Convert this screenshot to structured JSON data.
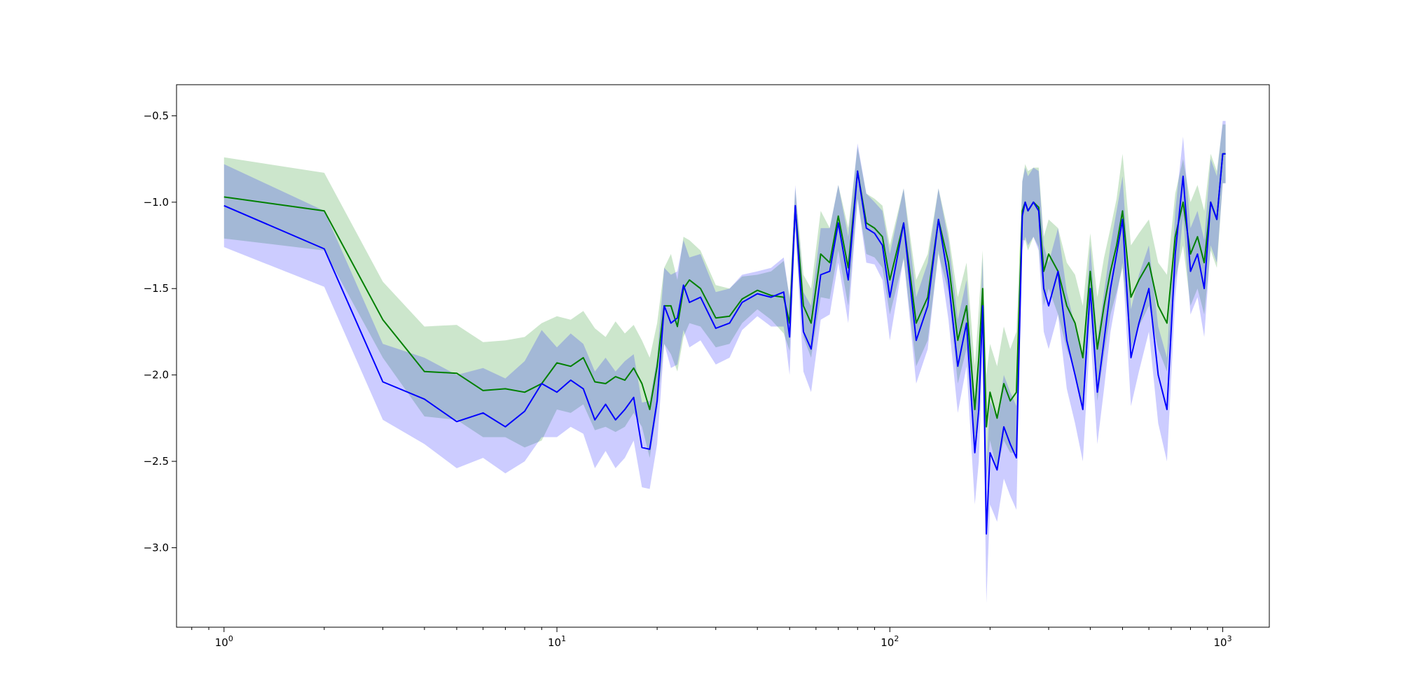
{
  "chart_data": {
    "type": "line",
    "title": "",
    "xlabel": "",
    "ylabel": "",
    "xscale": "log",
    "xlim": [
      0.72,
      1380
    ],
    "ylim": [
      -3.46,
      -0.32
    ],
    "grid": false,
    "legend": "none",
    "x_tick_values": [
      1,
      10,
      100,
      1000
    ],
    "x_tick_bases": [
      "10",
      "10",
      "10",
      "10"
    ],
    "x_tick_exponents": [
      "0",
      "1",
      "2",
      "3"
    ],
    "y_tick_values": [
      -0.5,
      -1.0,
      -1.5,
      -2.0,
      -2.5,
      -3.0
    ],
    "y_tick_labels": [
      "−0.5",
      "−1.0",
      "−1.5",
      "−2.0",
      "−2.5",
      "−3.0"
    ],
    "series": [
      {
        "color": "#008000",
        "band_color": "#008000",
        "band_opacity": 0.2,
        "x": [
          1,
          2,
          3,
          4,
          5,
          6,
          7,
          8,
          9,
          10,
          11,
          12,
          13,
          14,
          15,
          16,
          17,
          18,
          19,
          20,
          21,
          22,
          23,
          24,
          25,
          27,
          30,
          33,
          36,
          40,
          44,
          48,
          50,
          52,
          55,
          58,
          62,
          66,
          70,
          75,
          80,
          85,
          90,
          95,
          100,
          110,
          120,
          130,
          140,
          150,
          160,
          170,
          180,
          185,
          190,
          195,
          200,
          210,
          220,
          230,
          240,
          250,
          255,
          260,
          270,
          280,
          290,
          300,
          320,
          340,
          360,
          380,
          400,
          420,
          440,
          460,
          480,
          500,
          530,
          560,
          600,
          640,
          680,
          720,
          760,
          800,
          840,
          880,
          920,
          960,
          1000,
          1020
        ],
        "y": [
          -0.97,
          -1.05,
          -1.68,
          -1.98,
          -1.99,
          -2.09,
          -2.08,
          -2.1,
          -2.05,
          -1.93,
          -1.95,
          -1.9,
          -2.04,
          -2.05,
          -2.01,
          -2.03,
          -1.96,
          -2.05,
          -2.2,
          -1.95,
          -1.6,
          -1.6,
          -1.72,
          -1.5,
          -1.45,
          -1.5,
          -1.67,
          -1.66,
          -1.56,
          -1.51,
          -1.54,
          -1.55,
          -1.7,
          -1.03,
          -1.6,
          -1.7,
          -1.3,
          -1.35,
          -1.08,
          -1.38,
          -0.82,
          -1.12,
          -1.15,
          -1.2,
          -1.45,
          -1.12,
          -1.7,
          -1.55,
          -1.1,
          -1.35,
          -1.8,
          -1.6,
          -2.2,
          -1.9,
          -1.5,
          -2.3,
          -2.1,
          -2.25,
          -2.05,
          -2.15,
          -2.1,
          -1.05,
          -1.0,
          -1.05,
          -1.0,
          -1.03,
          -1.4,
          -1.3,
          -1.4,
          -1.6,
          -1.7,
          -1.9,
          -1.4,
          -1.85,
          -1.6,
          -1.4,
          -1.25,
          -1.05,
          -1.55,
          -1.45,
          -1.35,
          -1.6,
          -1.7,
          -1.2,
          -1.0,
          -1.3,
          -1.2,
          -1.35,
          -1.0,
          -1.1,
          -0.72,
          -0.72
        ],
        "upper": [
          -0.74,
          -0.83,
          -1.46,
          -1.72,
          -1.71,
          -1.81,
          -1.8,
          -1.78,
          -1.7,
          -1.66,
          -1.68,
          -1.63,
          -1.73,
          -1.78,
          -1.69,
          -1.76,
          -1.71,
          -1.8,
          -1.9,
          -1.7,
          -1.38,
          -1.3,
          -1.45,
          -1.2,
          -1.22,
          -1.28,
          -1.48,
          -1.5,
          -1.43,
          -1.42,
          -1.4,
          -1.34,
          -1.55,
          -0.92,
          -1.42,
          -1.5,
          -1.05,
          -1.15,
          -0.9,
          -1.15,
          -0.68,
          -0.95,
          -0.98,
          -1.02,
          -1.25,
          -0.92,
          -1.45,
          -1.3,
          -0.92,
          -1.18,
          -1.55,
          -1.35,
          -1.95,
          -1.62,
          -1.28,
          -2.0,
          -1.82,
          -1.95,
          -1.72,
          -1.85,
          -1.75,
          -0.88,
          -0.78,
          -0.82,
          -0.8,
          -0.8,
          -1.2,
          -1.1,
          -1.15,
          -1.35,
          -1.42,
          -1.6,
          -1.18,
          -1.55,
          -1.32,
          -1.15,
          -0.98,
          -0.72,
          -1.25,
          -1.18,
          -1.1,
          -1.35,
          -1.42,
          -0.95,
          -0.75,
          -1.0,
          -0.9,
          -1.05,
          -0.72,
          -0.82,
          -0.55,
          -0.55
        ],
        "lower": [
          -1.21,
          -1.28,
          -1.9,
          -2.24,
          -2.26,
          -2.36,
          -2.36,
          -2.42,
          -2.38,
          -2.2,
          -2.22,
          -2.17,
          -2.32,
          -2.3,
          -2.33,
          -2.3,
          -2.22,
          -2.3,
          -2.48,
          -2.2,
          -1.82,
          -1.88,
          -1.98,
          -1.78,
          -1.7,
          -1.72,
          -1.84,
          -1.82,
          -1.7,
          -1.62,
          -1.68,
          -1.76,
          -1.86,
          -1.15,
          -1.78,
          -1.9,
          -1.55,
          -1.56,
          -1.28,
          -1.6,
          -0.98,
          -1.3,
          -1.32,
          -1.38,
          -1.65,
          -1.33,
          -1.95,
          -1.8,
          -1.3,
          -1.52,
          -2.05,
          -1.85,
          -2.45,
          -2.2,
          -1.72,
          -2.6,
          -2.38,
          -2.55,
          -2.38,
          -2.45,
          -2.45,
          -1.22,
          -1.22,
          -1.28,
          -1.2,
          -1.26,
          -1.6,
          -1.5,
          -1.65,
          -1.85,
          -1.98,
          -2.2,
          -1.62,
          -2.15,
          -1.88,
          -1.65,
          -1.52,
          -1.38,
          -1.85,
          -1.72,
          -1.6,
          -1.85,
          -1.98,
          -1.45,
          -1.25,
          -1.6,
          -1.5,
          -1.65,
          -1.28,
          -1.38,
          -0.89,
          -0.89
        ]
      },
      {
        "color": "#0000ff",
        "band_color": "#0000ff",
        "band_opacity": 0.2,
        "x": [
          1,
          2,
          3,
          4,
          5,
          6,
          7,
          8,
          9,
          10,
          11,
          12,
          13,
          14,
          15,
          16,
          17,
          18,
          19,
          20,
          21,
          22,
          23,
          24,
          25,
          27,
          30,
          33,
          36,
          40,
          44,
          48,
          50,
          52,
          55,
          58,
          62,
          66,
          70,
          75,
          80,
          85,
          90,
          95,
          100,
          110,
          120,
          130,
          140,
          150,
          160,
          170,
          180,
          185,
          190,
          195,
          200,
          210,
          220,
          230,
          240,
          250,
          255,
          260,
          270,
          280,
          290,
          300,
          320,
          340,
          360,
          380,
          400,
          420,
          440,
          460,
          480,
          500,
          530,
          560,
          600,
          640,
          680,
          720,
          760,
          800,
          840,
          880,
          920,
          960,
          1000,
          1020
        ],
        "y": [
          -1.02,
          -1.27,
          -2.04,
          -2.14,
          -2.27,
          -2.22,
          -2.3,
          -2.21,
          -2.05,
          -2.1,
          -2.03,
          -2.08,
          -2.26,
          -2.17,
          -2.26,
          -2.2,
          -2.13,
          -2.42,
          -2.43,
          -2.15,
          -1.6,
          -1.7,
          -1.67,
          -1.48,
          -1.58,
          -1.55,
          -1.73,
          -1.7,
          -1.58,
          -1.53,
          -1.55,
          -1.52,
          -1.78,
          -1.02,
          -1.75,
          -1.85,
          -1.42,
          -1.4,
          -1.12,
          -1.45,
          -0.82,
          -1.15,
          -1.18,
          -1.25,
          -1.55,
          -1.12,
          -1.8,
          -1.6,
          -1.1,
          -1.45,
          -1.95,
          -1.7,
          -2.45,
          -2.2,
          -1.6,
          -2.92,
          -2.45,
          -2.55,
          -2.3,
          -2.4,
          -2.48,
          -1.08,
          -1.0,
          -1.05,
          -1.0,
          -1.05,
          -1.5,
          -1.6,
          -1.4,
          -1.8,
          -2.0,
          -2.2,
          -1.5,
          -2.1,
          -1.8,
          -1.5,
          -1.3,
          -1.1,
          -1.9,
          -1.7,
          -1.5,
          -2.0,
          -2.2,
          -1.3,
          -0.85,
          -1.4,
          -1.3,
          -1.5,
          -1.0,
          -1.1,
          -0.72,
          -0.72
        ],
        "upper": [
          -0.78,
          -1.05,
          -1.82,
          -1.9,
          -2.0,
          -1.96,
          -2.02,
          -1.92,
          -1.74,
          -1.84,
          -1.76,
          -1.82,
          -1.98,
          -1.9,
          -1.98,
          -1.92,
          -1.88,
          -2.16,
          -2.15,
          -1.9,
          -1.38,
          -1.42,
          -1.4,
          -1.22,
          -1.32,
          -1.3,
          -1.52,
          -1.5,
          -1.42,
          -1.4,
          -1.38,
          -1.32,
          -1.56,
          -0.9,
          -1.52,
          -1.6,
          -1.15,
          -1.15,
          -0.9,
          -1.2,
          -0.66,
          -0.95,
          -1.0,
          -1.05,
          -1.3,
          -0.92,
          -1.55,
          -1.35,
          -0.92,
          -1.22,
          -1.68,
          -1.45,
          -2.15,
          -1.9,
          -1.32,
          -2.55,
          -2.15,
          -2.25,
          -2.0,
          -2.1,
          -2.18,
          -0.88,
          -0.8,
          -0.85,
          -0.8,
          -0.82,
          -1.25,
          -1.35,
          -1.15,
          -1.52,
          -1.72,
          -1.9,
          -1.25,
          -1.8,
          -1.52,
          -1.25,
          -1.05,
          -0.85,
          -1.62,
          -1.42,
          -1.25,
          -1.72,
          -1.9,
          -1.05,
          -0.62,
          -1.15,
          -1.05,
          -1.22,
          -0.75,
          -0.85,
          -0.53,
          -0.53
        ],
        "lower": [
          -1.26,
          -1.49,
          -2.26,
          -2.4,
          -2.54,
          -2.48,
          -2.57,
          -2.5,
          -2.36,
          -2.36,
          -2.3,
          -2.34,
          -2.54,
          -2.44,
          -2.54,
          -2.48,
          -2.38,
          -2.65,
          -2.66,
          -2.4,
          -1.82,
          -1.96,
          -1.94,
          -1.74,
          -1.84,
          -1.8,
          -1.94,
          -1.9,
          -1.74,
          -1.66,
          -1.72,
          -1.72,
          -2.0,
          -1.14,
          -1.98,
          -2.1,
          -1.68,
          -1.65,
          -1.35,
          -1.7,
          -0.98,
          -1.35,
          -1.36,
          -1.45,
          -1.8,
          -1.32,
          -2.05,
          -1.85,
          -1.28,
          -1.68,
          -2.22,
          -1.95,
          -2.75,
          -2.5,
          -1.88,
          -3.32,
          -2.75,
          -2.85,
          -2.6,
          -2.7,
          -2.78,
          -1.28,
          -1.2,
          -1.25,
          -1.2,
          -1.28,
          -1.75,
          -1.85,
          -1.65,
          -2.08,
          -2.28,
          -2.5,
          -1.75,
          -2.4,
          -2.08,
          -1.75,
          -1.55,
          -1.35,
          -2.18,
          -1.98,
          -1.75,
          -2.28,
          -2.5,
          -1.55,
          -1.08,
          -1.65,
          -1.55,
          -1.78,
          -1.25,
          -1.35,
          -0.89,
          -0.89
        ]
      }
    ]
  }
}
